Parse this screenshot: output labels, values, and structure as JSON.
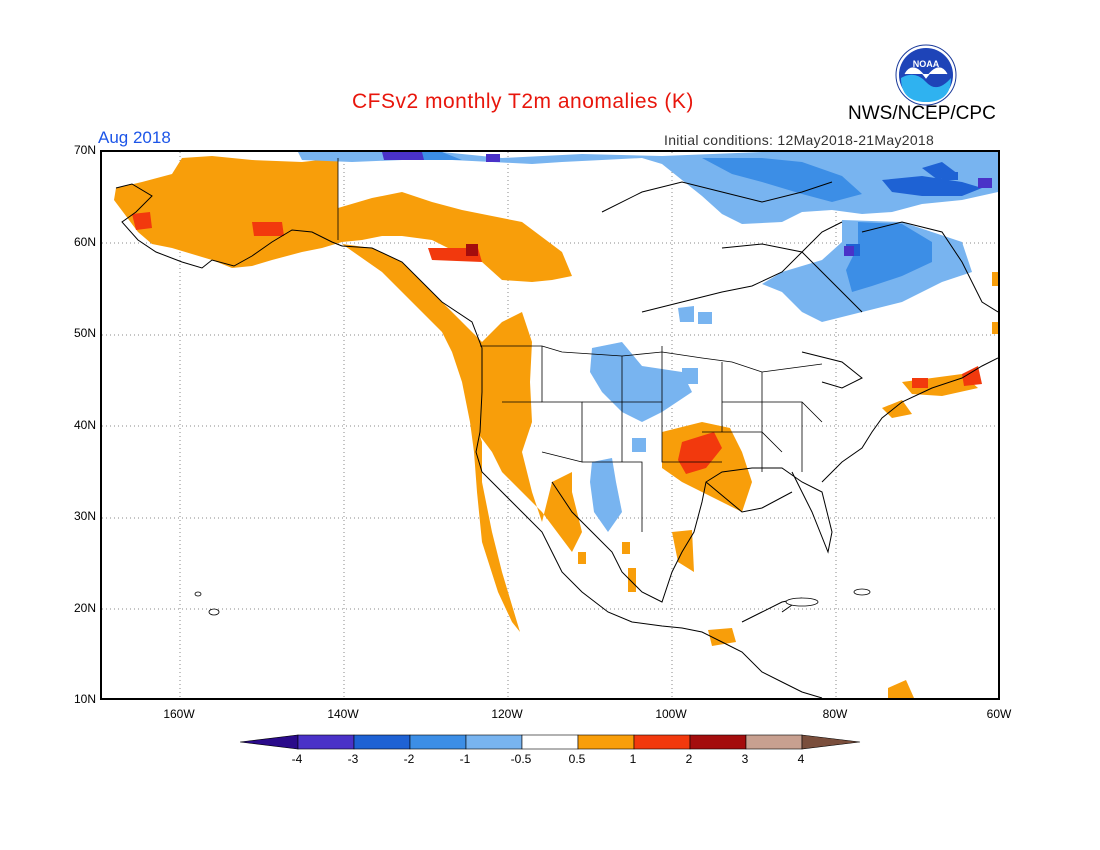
{
  "title": "CFSv2 monthly T2m anomalies (K)",
  "agency": "NWS/NCEP/CPC",
  "month": "Aug 2018",
  "initial_conditions": "Initial conditions: 12May2018-21May2018",
  "logo_text": "NOAA",
  "lat_labels": [
    "70N",
    "60N",
    "50N",
    "40N",
    "30N",
    "20N",
    "10N"
  ],
  "lon_labels": [
    "160W",
    "140W",
    "120W",
    "100W",
    "80W",
    "60W"
  ],
  "colorbar": {
    "ticks": [
      "-4",
      "-3",
      "-2",
      "-1",
      "-0.5",
      "0.5",
      "1",
      "2",
      "3",
      "4"
    ],
    "colors": [
      "#2a0a8a",
      "#4a32c8",
      "#1e62d4",
      "#3c8ee6",
      "#78b4f0",
      "#ffffff",
      "#f89e0a",
      "#f2390d",
      "#a40d0d",
      "#c8a090",
      "#7a4e3c"
    ]
  },
  "colors": {
    "title": "#e8160c",
    "month": "#1c55e8",
    "warm": "#f89e0a",
    "hot": "#f2390d",
    "cool": "#78b4f0",
    "cold": "#3c8ee6"
  }
}
